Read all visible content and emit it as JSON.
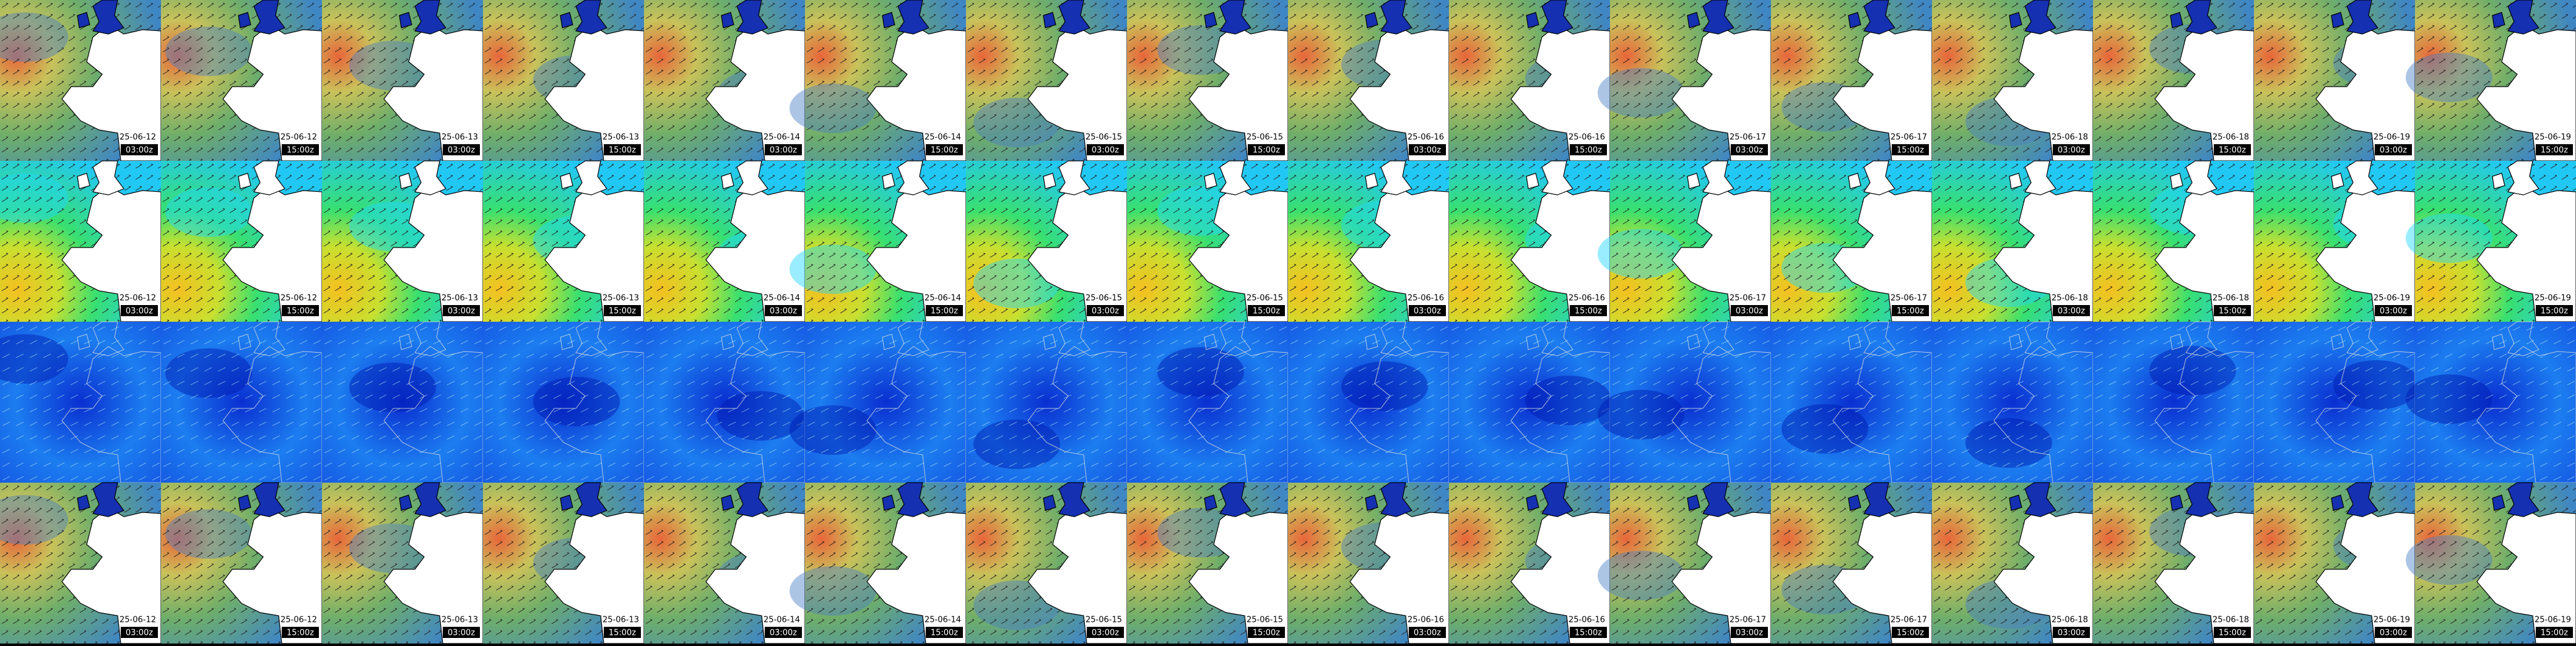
{
  "labeled_rows": [
    {
      "frames": [
        {
          "date": "25-06-12",
          "time": "03:00z"
        },
        {
          "date": "25-06-12",
          "time": "15:00z"
        },
        {
          "date": "25-06-13",
          "time": "03:00z"
        },
        {
          "date": "25-06-13",
          "time": "15:00z"
        },
        {
          "date": "25-06-14",
          "time": "03:00z"
        },
        {
          "date": "25-06-14",
          "time": "15:00z"
        },
        {
          "date": "25-06-15",
          "time": "03:00z"
        },
        {
          "date": "25-06-15",
          "time": "15:00z"
        },
        {
          "date": "25-06-16",
          "time": "03:00z"
        },
        {
          "date": "25-06-16",
          "time": "15:00z"
        },
        {
          "date": "25-06-17",
          "time": "03:00z"
        },
        {
          "date": "25-06-17",
          "time": "15:00z"
        },
        {
          "date": "25-06-18",
          "time": "03:00z"
        },
        {
          "date": "25-06-18",
          "time": "15:00z"
        },
        {
          "date": "25-06-19",
          "time": "03:00z"
        },
        {
          "date": "25-06-19",
          "time": "15:00z"
        }
      ]
    },
    {
      "frames": [
        {
          "date": "25-06-12",
          "time": "03:00z"
        },
        {
          "date": "25-06-12",
          "time": "15:00z"
        },
        {
          "date": "25-06-13",
          "time": "03:00z"
        },
        {
          "date": "25-06-13",
          "time": "15:00z"
        },
        {
          "date": "25-06-14",
          "time": "03:00z"
        },
        {
          "date": "25-06-14",
          "time": "15:00z"
        },
        {
          "date": "25-06-15",
          "time": "03:00z"
        },
        {
          "date": "25-06-15",
          "time": "15:00z"
        },
        {
          "date": "25-06-16",
          "time": "03:00z"
        },
        {
          "date": "25-06-16",
          "time": "15:00z"
        },
        {
          "date": "25-06-17",
          "time": "03:00z"
        },
        {
          "date": "25-06-17",
          "time": "15:00z"
        },
        {
          "date": "25-06-18",
          "time": "03:00z"
        },
        {
          "date": "25-06-18",
          "time": "15:00z"
        },
        {
          "date": "25-06-19",
          "time": "03:00z"
        },
        {
          "date": "25-06-19",
          "time": "15:00z"
        }
      ]
    },
    {
      "frames": [
        {
          "date": "25-06-12",
          "time": "03:00z"
        },
        {
          "date": "25-06-12",
          "time": "15:00z"
        },
        {
          "date": "25-06-13",
          "time": "03:00z"
        },
        {
          "date": "25-06-13",
          "time": "15:00z"
        },
        {
          "date": "25-06-14",
          "time": "03:00z"
        },
        {
          "date": "25-06-14",
          "time": "15:00z"
        },
        {
          "date": "25-06-15",
          "time": "03:00z"
        },
        {
          "date": "25-06-15",
          "time": "15:00z"
        },
        {
          "date": "25-06-16",
          "time": "03:00z"
        },
        {
          "date": "25-06-16",
          "time": "15:00z"
        },
        {
          "date": "25-06-17",
          "time": "03:00z"
        },
        {
          "date": "25-06-17",
          "time": "15:00z"
        },
        {
          "date": "25-06-18",
          "time": "03:00z"
        },
        {
          "date": "25-06-18",
          "time": "15:00z"
        },
        {
          "date": "25-06-19",
          "time": "03:00z"
        },
        {
          "date": "25-06-19",
          "time": "15:00z"
        }
      ]
    }
  ]
}
